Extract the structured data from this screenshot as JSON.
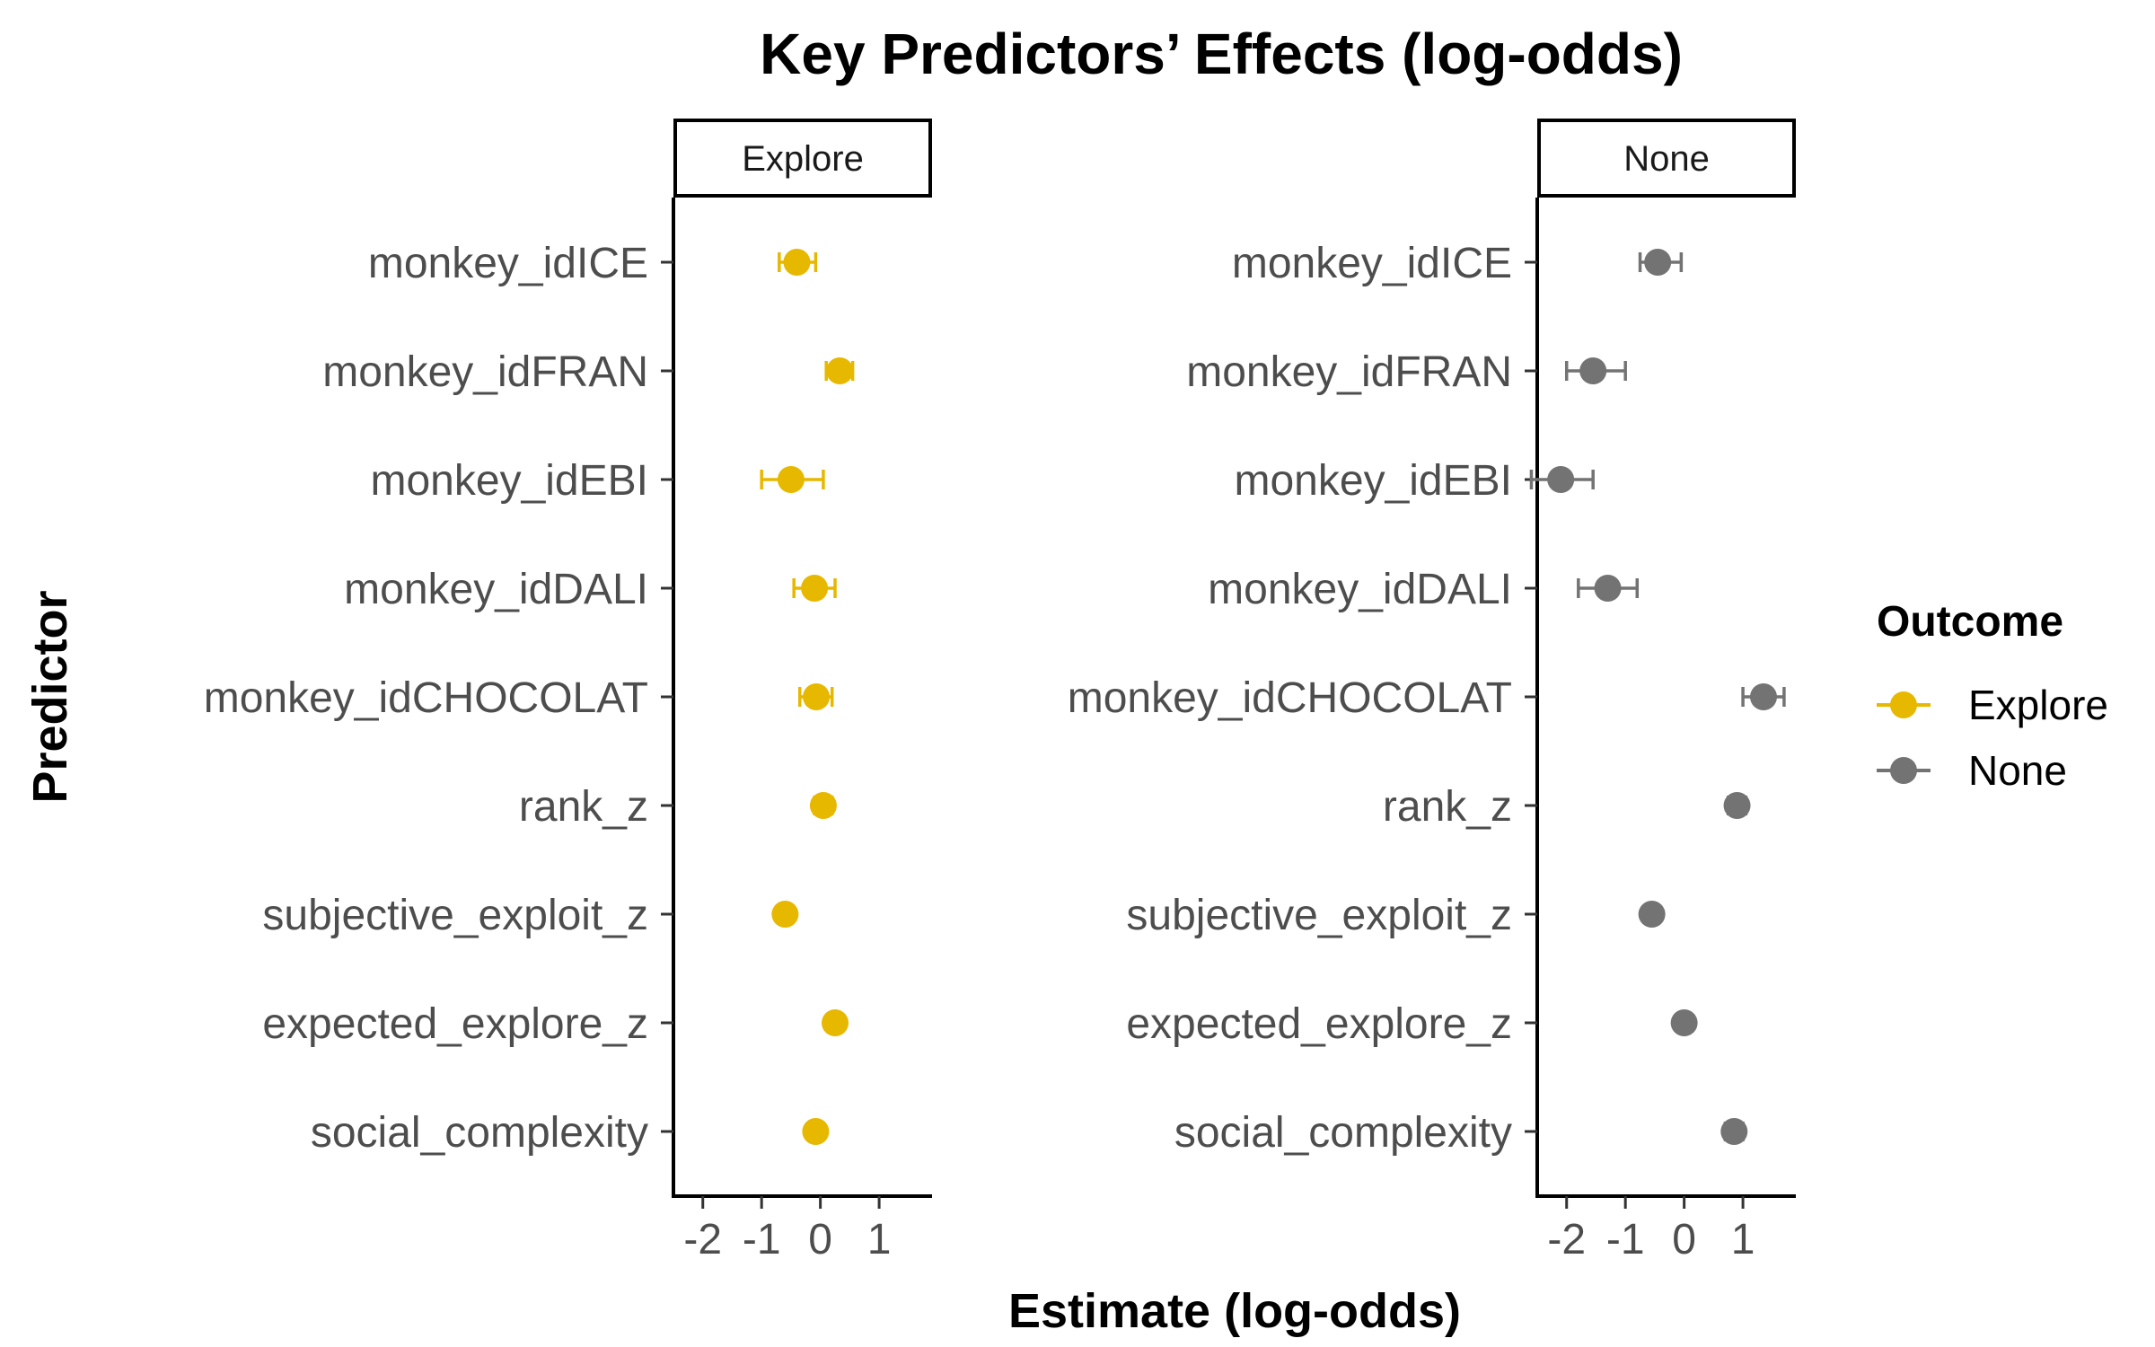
{
  "chart_data": {
    "type": "scatter",
    "title": "Key Predictors’ Effects (log-odds)",
    "xlabel": "Estimate (log-odds)",
    "ylabel": "Predictor",
    "xlim": [
      -2.5,
      1.9
    ],
    "xticks": [
      -2,
      -1,
      0,
      1
    ],
    "xtick_labels": [
      "-2",
      "-1",
      "0",
      "1"
    ],
    "grid": false,
    "legend": {
      "title": "Outcome",
      "position": "right",
      "entries": [
        {
          "label": "Explore",
          "color": "#E7B800"
        },
        {
          "label": "None",
          "color": "#737373"
        }
      ]
    },
    "categories": [
      "monkey_idICE",
      "monkey_idFRAN",
      "monkey_idEBI",
      "monkey_idDALI",
      "monkey_idCHOCOLAT",
      "rank_z",
      "subjective_exploit_z",
      "expected_explore_z",
      "social_complexity"
    ],
    "panels": [
      {
        "facet": "Explore",
        "color": "#E7B800",
        "estimates": [
          -0.4,
          0.33,
          -0.5,
          -0.1,
          -0.07,
          0.05,
          -0.6,
          0.25,
          -0.08
        ],
        "ci_low": [
          -0.7,
          0.1,
          -1.0,
          -0.45,
          -0.35,
          -0.1,
          -0.7,
          0.15,
          -0.2
        ],
        "ci_high": [
          -0.08,
          0.55,
          0.05,
          0.25,
          0.2,
          0.2,
          -0.5,
          0.35,
          0.05
        ]
      },
      {
        "facet": "None",
        "color": "#737373",
        "estimates": [
          -0.45,
          -1.55,
          -2.1,
          -1.3,
          1.35,
          0.9,
          -0.55,
          0.0,
          0.85
        ],
        "ci_low": [
          -0.75,
          -2.0,
          -2.6,
          -1.8,
          1.0,
          0.75,
          -0.65,
          -0.1,
          0.7
        ],
        "ci_high": [
          -0.05,
          -1.0,
          -1.55,
          -0.8,
          1.7,
          1.05,
          -0.45,
          0.1,
          1.0
        ]
      }
    ]
  }
}
